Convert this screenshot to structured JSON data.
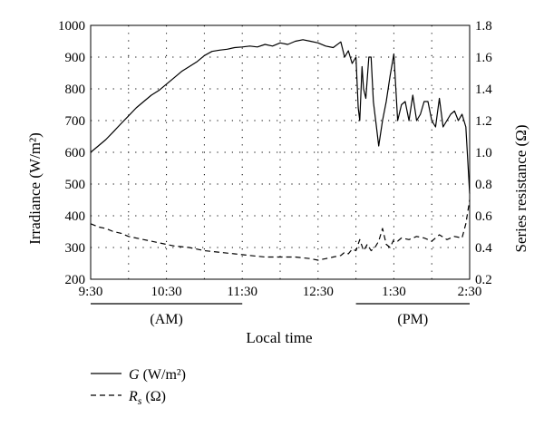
{
  "chart_data": {
    "type": "line",
    "xlabel": "Local time",
    "ylabel_left": "Irradiance (W/m²)",
    "ylabel_right": "Series resistance (Ω)",
    "x_ticks": [
      "9:30",
      "10:30",
      "11:30",
      "12:30",
      "1:30",
      "2:30"
    ],
    "x_range_hours": [
      9.5,
      14.5
    ],
    "period_labels": [
      {
        "label": "(AM)",
        "from": "9:30",
        "to": "11:30"
      },
      {
        "label": "(PM)",
        "from": "1:00",
        "to": "2:30"
      }
    ],
    "y_left": {
      "range": [
        200,
        1000
      ],
      "ticks": [
        "200",
        "300",
        "400",
        "500",
        "600",
        "700",
        "800",
        "900",
        "1000"
      ]
    },
    "y_right": {
      "range": [
        0.2,
        1.8
      ],
      "ticks": [
        "0.2",
        "0.4",
        "0.6",
        "0.8",
        "1.0",
        "1.2",
        "1.4",
        "1.6",
        "1.8"
      ]
    },
    "grid": "dotted",
    "legend": {
      "placement": "bottom-left",
      "entries": [
        {
          "symbol": "G",
          "unit": " (W/m²)",
          "style": "solid"
        },
        {
          "symbol": "R",
          "subscript": "s",
          "unit": " (Ω)",
          "style": "dashed"
        }
      ]
    },
    "series": [
      {
        "axis": "left",
        "style": "solid",
        "x": [
          9.5,
          9.6,
          9.7,
          9.8,
          9.9,
          10.0,
          10.1,
          10.2,
          10.3,
          10.4,
          10.5,
          10.6,
          10.7,
          10.8,
          10.9,
          11.0,
          11.1,
          11.2,
          11.3,
          11.4,
          11.5,
          11.6,
          11.7,
          11.8,
          11.9,
          12.0,
          12.1,
          12.2,
          12.3,
          12.4,
          12.5,
          12.6,
          12.7,
          12.8,
          12.85,
          12.9,
          12.95,
          13.0,
          13.03,
          13.05,
          13.08,
          13.1,
          13.13,
          13.17,
          13.2,
          13.23,
          13.27,
          13.3,
          13.35,
          13.4,
          13.45,
          13.5,
          13.55,
          13.6,
          13.65,
          13.7,
          13.75,
          13.8,
          13.85,
          13.9,
          13.95,
          14.0,
          14.05,
          14.1,
          14.15,
          14.2,
          14.25,
          14.3,
          14.35,
          14.4,
          14.45,
          14.5
        ],
        "y": [
          600,
          620,
          640,
          665,
          690,
          715,
          740,
          760,
          780,
          795,
          815,
          835,
          855,
          870,
          885,
          905,
          918,
          922,
          925,
          930,
          932,
          935,
          932,
          940,
          935,
          945,
          940,
          950,
          955,
          950,
          945,
          935,
          930,
          948,
          900,
          920,
          880,
          900,
          740,
          700,
          870,
          800,
          770,
          900,
          900,
          760,
          680,
          620,
          700,
          760,
          840,
          910,
          700,
          750,
          760,
          700,
          780,
          700,
          720,
          760,
          760,
          700,
          680,
          770,
          680,
          700,
          720,
          730,
          700,
          720,
          680,
          470
        ]
      },
      {
        "axis": "right",
        "style": "dashed",
        "x": [
          9.5,
          9.6,
          9.7,
          9.8,
          9.9,
          10.0,
          10.2,
          10.4,
          10.6,
          10.8,
          11.0,
          11.2,
          11.4,
          11.6,
          11.8,
          12.0,
          12.2,
          12.4,
          12.5,
          12.6,
          12.7,
          12.8,
          12.85,
          12.9,
          12.95,
          13.0,
          13.05,
          13.1,
          13.15,
          13.2,
          13.25,
          13.3,
          13.35,
          13.4,
          13.45,
          13.5,
          13.55,
          13.6,
          13.7,
          13.8,
          13.9,
          14.0,
          14.1,
          14.2,
          14.3,
          14.4,
          14.45,
          14.5
        ],
        "y": [
          0.55,
          0.53,
          0.52,
          0.5,
          0.49,
          0.47,
          0.45,
          0.43,
          0.41,
          0.4,
          0.38,
          0.37,
          0.36,
          0.35,
          0.34,
          0.34,
          0.34,
          0.33,
          0.32,
          0.33,
          0.34,
          0.35,
          0.37,
          0.36,
          0.39,
          0.38,
          0.45,
          0.38,
          0.42,
          0.38,
          0.4,
          0.44,
          0.52,
          0.42,
          0.4,
          0.45,
          0.44,
          0.46,
          0.45,
          0.47,
          0.46,
          0.44,
          0.48,
          0.45,
          0.47,
          0.46,
          0.55,
          0.7
        ]
      }
    ]
  }
}
